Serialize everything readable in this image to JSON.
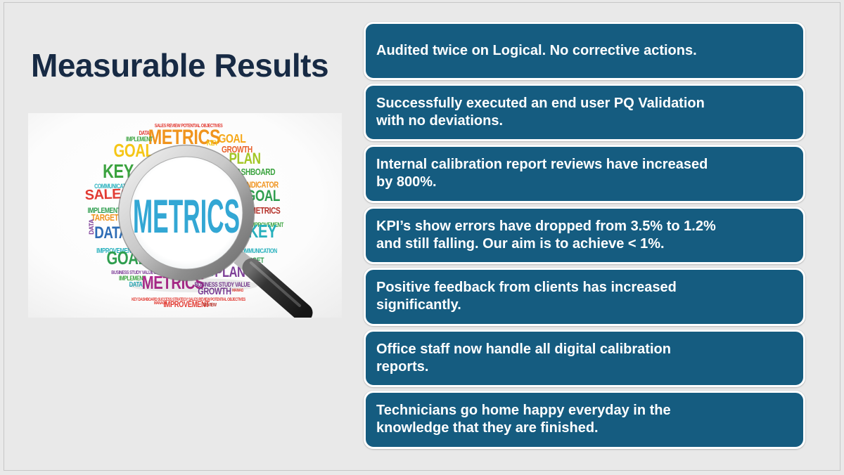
{
  "slide": {
    "title": "Measurable Results",
    "bullets": [
      "Audited twice on Logical. No corrective actions.",
      "Successfully executed an end user PQ Validation with no deviations.",
      "Internal calibration report reviews have increased by 800%.",
      "KPI’s show errors have dropped from 3.5% to 1.2% and still falling. Our aim is to achieve < 1%.",
      "Positive feedback from clients has increased significantly.",
      "Office staff now handle all digital calibration reports.",
      "Technicians go home happy everyday in the knowledge that they are finished."
    ],
    "colors": {
      "background": "#e9e9e9",
      "title": "#172a44",
      "box_fill": "#155c80",
      "box_border": "#ffffff",
      "box_text": "#ffffff",
      "frame_border": "#c6c6c6"
    }
  },
  "image": {
    "description": "word cloud about metrics seen through a magnifying glass",
    "lens_word": "METRICS",
    "lens_word_color": "#33a7d4",
    "words": [
      {
        "t": "SALES REVIEW POTENTIAL OBJECTIVES",
        "c": "#e23b33"
      },
      {
        "t": "METRICS",
        "c": "#f0941e"
      },
      {
        "t": "GOAL",
        "c": "#f5c616"
      },
      {
        "t": "GOAL",
        "c": "#f6a818"
      },
      {
        "t": "KEY",
        "c": "#f5c616"
      },
      {
        "t": "GROWTH",
        "c": "#e8622d"
      },
      {
        "t": "IMPLEMENT",
        "c": "#3ba33f"
      },
      {
        "t": "DATA",
        "c": "#e23b33"
      },
      {
        "t": "PLAN",
        "c": "#a4c626"
      },
      {
        "t": "DASHBOARD",
        "c": "#3ba33f"
      },
      {
        "t": "KEY",
        "c": "#3ba33f"
      },
      {
        "t": "COMMUNICATION",
        "c": "#27b0bd"
      },
      {
        "t": "INDICATOR",
        "c": "#f0941e"
      },
      {
        "t": "SALES",
        "c": "#e23b33"
      },
      {
        "t": "GOAL",
        "c": "#2f9e4f"
      },
      {
        "t": "METRICS",
        "c": "#b5322a"
      },
      {
        "t": "IMPLEMENT",
        "c": "#2f9e4f"
      },
      {
        "t": "TARGET",
        "c": "#f0941e"
      },
      {
        "t": "IMPROVEMENT",
        "c": "#3ba33f"
      },
      {
        "t": "DATA",
        "c": "#2d6cb5"
      },
      {
        "t": "KEY",
        "c": "#27b0bd"
      },
      {
        "t": "IMPROVEMENT",
        "c": "#27b0bd"
      },
      {
        "t": "COMMUNICATION",
        "c": "#27b0bd"
      },
      {
        "t": "TARGET",
        "c": "#2f9e4f"
      },
      {
        "t": "GOAL",
        "c": "#2f9e4f"
      },
      {
        "t": "BUSINESS STUDY VALUE DATA",
        "c": "#7e3f98"
      },
      {
        "t": "IMPLEMENT",
        "c": "#3ba33f"
      },
      {
        "t": "DATA",
        "c": "#27b0bd"
      },
      {
        "t": "KEY",
        "c": "#27b0bd"
      },
      {
        "t": "PLAN",
        "c": "#7e3f98"
      },
      {
        "t": "METRICS",
        "c": "#b02a8f"
      },
      {
        "t": "BUSINESS STUDY VALUE",
        "c": "#7e3f98"
      },
      {
        "t": "GROWTH",
        "c": "#7e3f98"
      },
      {
        "t": "KEY DASHBOARD SUCCESS STRATEGY SALES REVIEW POTENTIAL OBJECTIVES",
        "c": "#e23b33"
      },
      {
        "t": "IMPROVEMENT",
        "c": "#e23b33"
      },
      {
        "t": "MANAGE",
        "c": "#e23b33"
      },
      {
        "t": "REVIEW",
        "c": "#b5322a"
      },
      {
        "t": "DATA",
        "c": "#7e3f98"
      },
      {
        "t": "IDEA",
        "c": "#f5c616"
      },
      {
        "t": "MANAG",
        "c": "#e23b33"
      }
    ]
  }
}
